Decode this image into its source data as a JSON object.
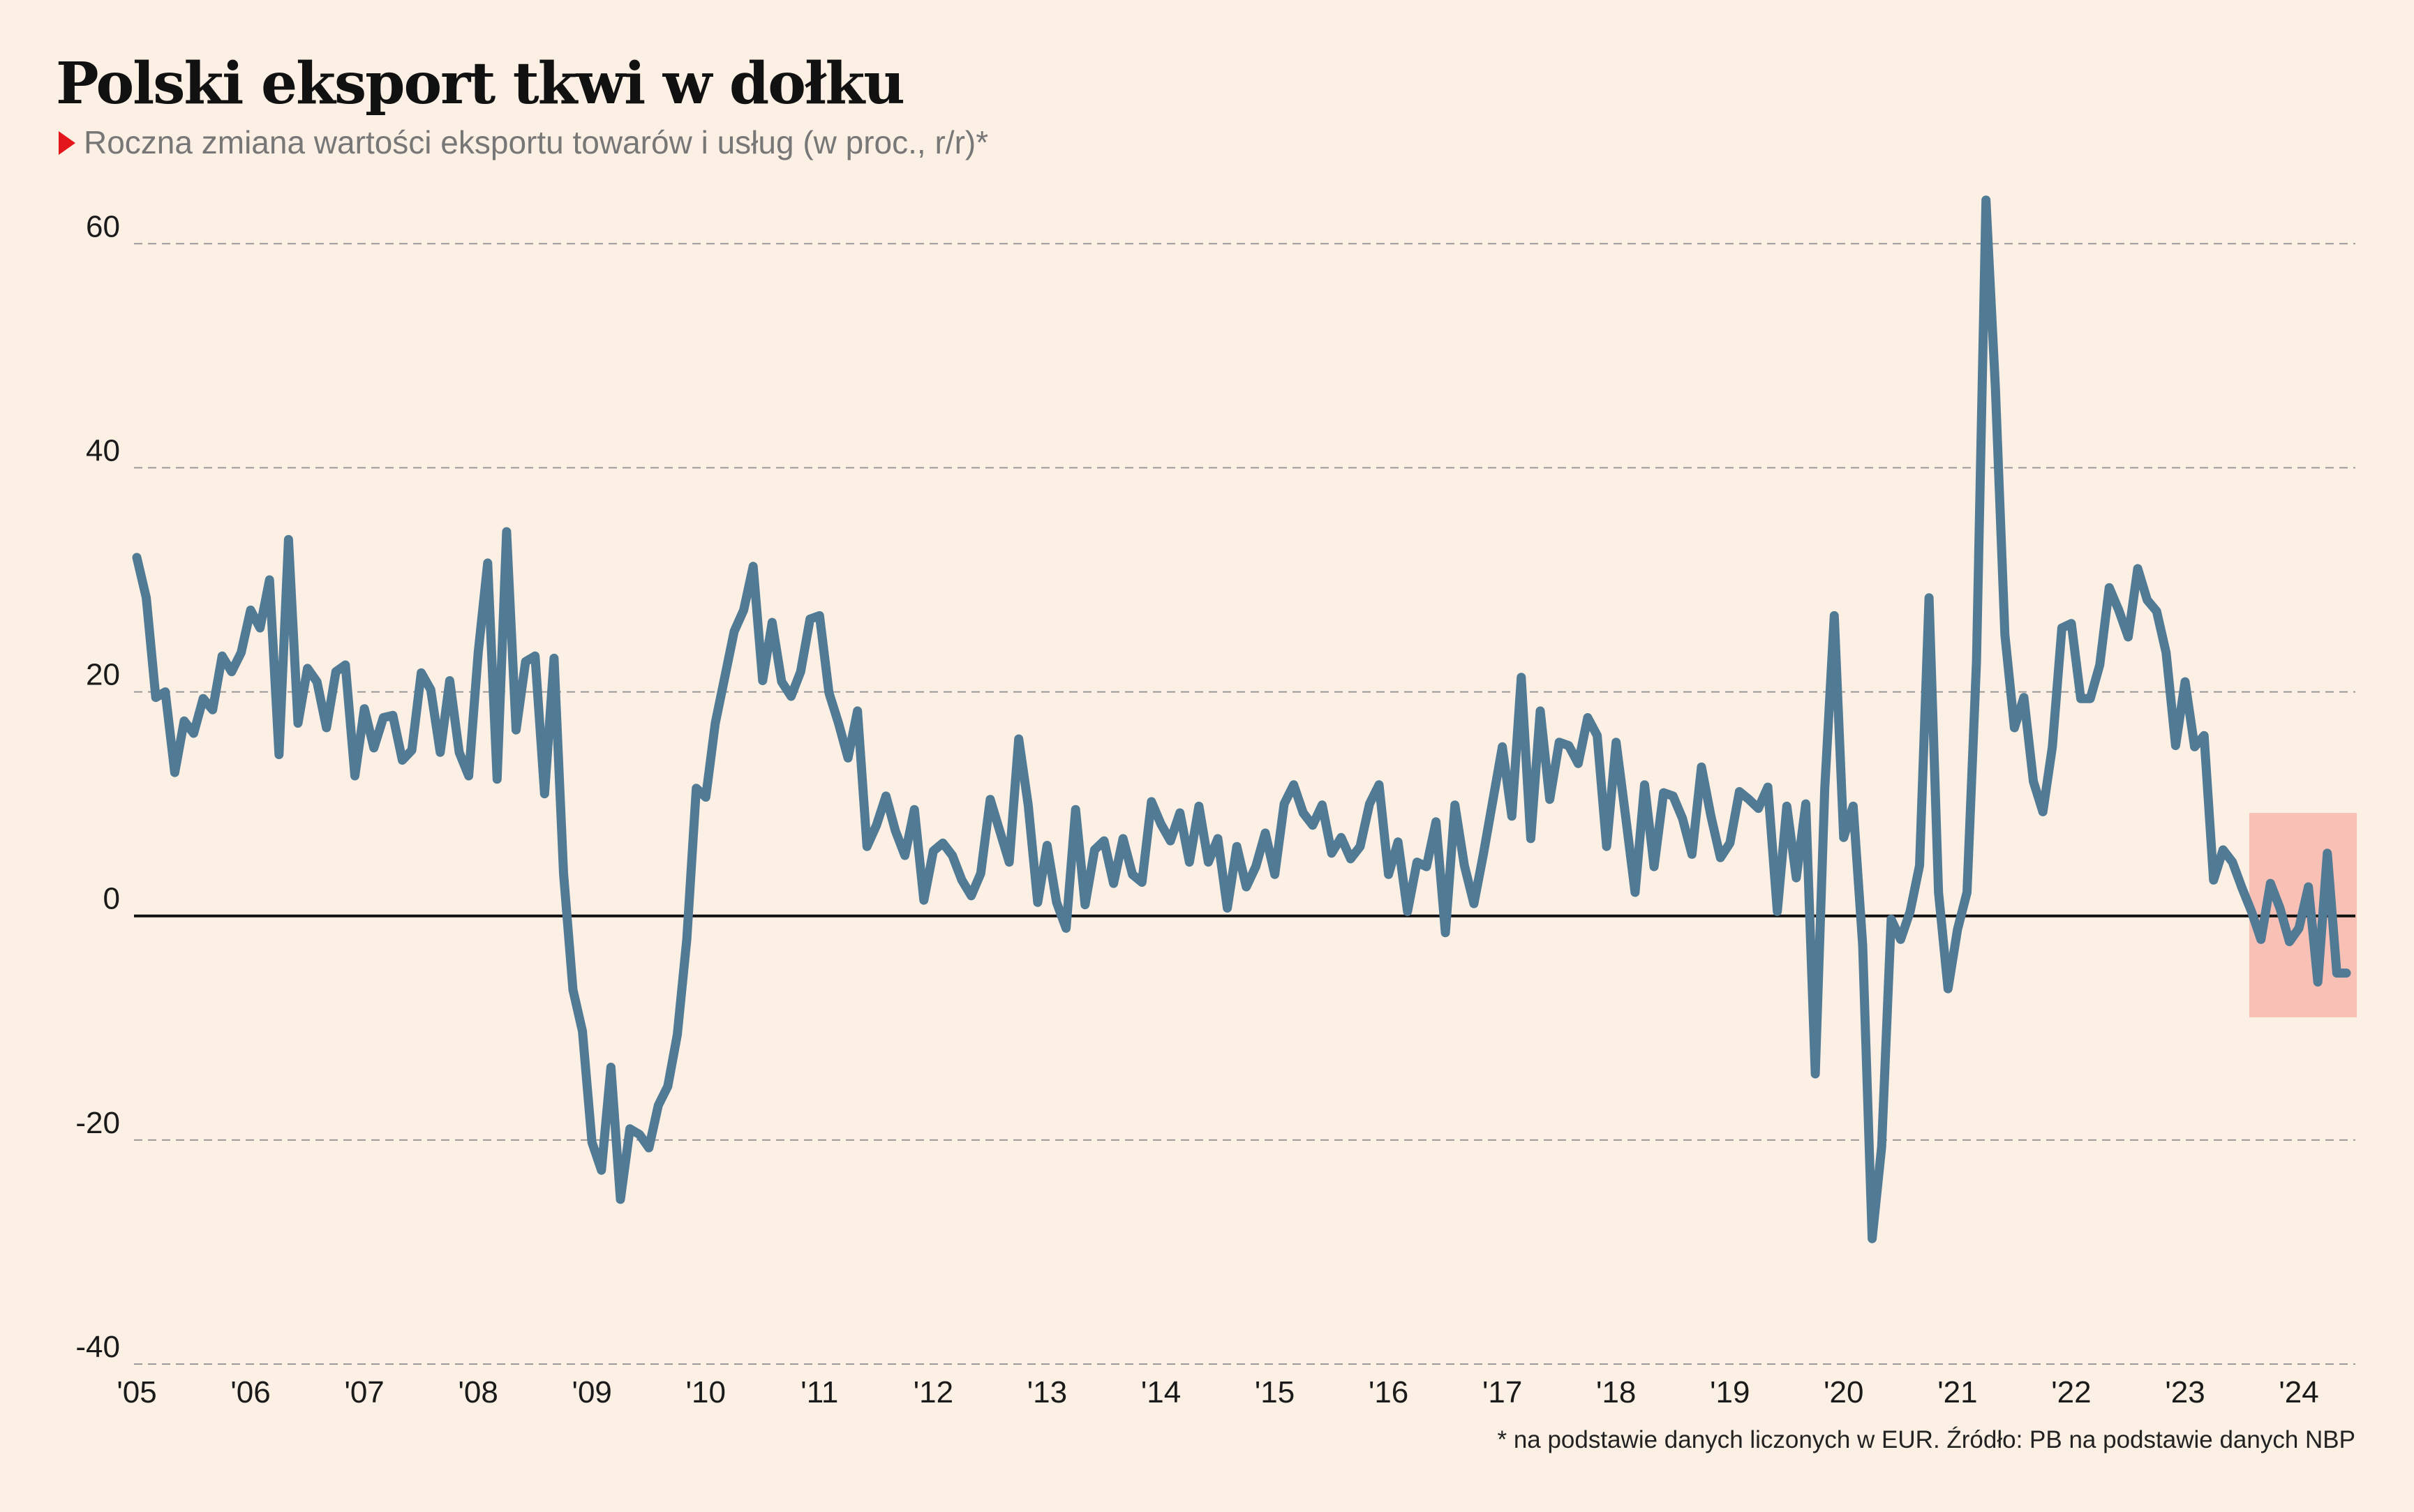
{
  "chart_data": {
    "type": "line",
    "title": "Polski eksport tkwi w dołku",
    "subtitle": "Roczna zmiana wartości eksportu towarów i usług (w proc., r/r)*",
    "footnote": "* na podstawie danych liczonych w EUR. Źródło: PB na podstawie danych NBP",
    "categories": [
      "'05",
      null,
      null,
      null,
      null,
      null,
      null,
      null,
      null,
      null,
      null,
      null,
      "'06",
      null,
      null,
      null,
      null,
      null,
      null,
      null,
      null,
      null,
      null,
      null,
      "'07",
      null,
      null,
      null,
      null,
      null,
      null,
      null,
      null,
      null,
      null,
      null,
      "'08",
      null,
      null,
      null,
      null,
      null,
      null,
      null,
      null,
      null,
      null,
      null,
      "'09",
      null,
      null,
      null,
      null,
      null,
      null,
      null,
      null,
      null,
      null,
      null,
      "'10",
      null,
      null,
      null,
      null,
      null,
      null,
      null,
      null,
      null,
      null,
      null,
      "'11",
      null,
      null,
      null,
      null,
      null,
      null,
      null,
      null,
      null,
      null,
      null,
      "'12",
      null,
      null,
      null,
      null,
      null,
      null,
      null,
      null,
      null,
      null,
      null,
      "'13",
      null,
      null,
      null,
      null,
      null,
      null,
      null,
      null,
      null,
      null,
      null,
      "'14",
      null,
      null,
      null,
      null,
      null,
      null,
      null,
      null,
      null,
      null,
      null,
      "'15",
      null,
      null,
      null,
      null,
      null,
      null,
      null,
      null,
      null,
      null,
      null,
      "'16",
      null,
      null,
      null,
      null,
      null,
      null,
      null,
      null,
      null,
      null,
      null,
      "'17",
      null,
      null,
      null,
      null,
      null,
      null,
      null,
      null,
      null,
      null,
      null,
      "'18",
      null,
      null,
      null,
      null,
      null,
      null,
      null,
      null,
      null,
      null,
      null,
      "'19",
      null,
      null,
      null,
      null,
      null,
      null,
      null,
      null,
      null,
      null,
      null,
      "'20",
      null,
      null,
      null,
      null,
      null,
      null,
      null,
      null,
      null,
      null,
      null,
      "'21",
      null,
      null,
      null,
      null,
      null,
      null,
      null,
      null,
      null,
      null,
      null,
      "'22",
      null,
      null,
      null,
      null,
      null,
      null,
      null,
      null,
      null,
      null,
      null,
      "'23",
      null,
      null,
      null,
      null,
      null,
      null,
      null,
      null,
      null,
      null,
      null,
      "'24",
      null,
      null,
      null,
      null,
      null
    ],
    "values": [
      32,
      28.4,
      19.5,
      20,
      12.8,
      17.4,
      16.3,
      19.4,
      18.4,
      23.2,
      21.8,
      23.5,
      27.3,
      25.7,
      30,
      14.4,
      33.6,
      17.2,
      22.1,
      20.9,
      16.8,
      21.8,
      22.4,
      12.5,
      18.5,
      15,
      17.7,
      17.9,
      13.9,
      14.8,
      21.7,
      20.2,
      14.6,
      21,
      14.6,
      12.5,
      23.5,
      31.5,
      12.2,
      34.3,
      16.6,
      22.7,
      23.2,
      10.9,
      23,
      3.8,
      -6.6,
      -10.3,
      -20.2,
      -22.7,
      -13.5,
      -25.3,
      -19,
      -19.5,
      -20.7,
      -16.9,
      -15.2,
      -10.6,
      -2.1,
      11.4,
      10.6,
      17.2,
      21.3,
      25.4,
      27.3,
      31.2,
      21,
      26.2,
      20.9,
      19.6,
      21.8,
      26.5,
      26.8,
      19.9,
      17.2,
      14.1,
      18.3,
      6.2,
      8.1,
      10.7,
      7.6,
      5.4,
      9.5,
      1.4,
      5.8,
      6.5,
      5.4,
      3.2,
      1.8,
      3.8,
      10.4,
      7.6,
      4.8,
      15.8,
      9.9,
      1.2,
      6.3,
      1.2,
      -1.1,
      9.5,
      1,
      5.9,
      6.7,
      2.9,
      6.9,
      3.7,
      3,
      10.2,
      8.2,
      6.7,
      9.2,
      4.8,
      9.8,
      4.8,
      6.9,
      0.7,
      6.2,
      2.6,
      4.4,
      7.4,
      3.7,
      10,
      11.7,
      9.2,
      8.1,
      9.9,
      5.6,
      7,
      5.1,
      6.2,
      10,
      11.7,
      3.7,
      6.6,
      0.4,
      4.8,
      4.4,
      8.4,
      -1.5,
      9.9,
      4.5,
      1.1,
      5.5,
      10.3,
      15.1,
      8.9,
      21.3,
      6.9,
      18.3,
      10.4,
      15.5,
      15.2,
      13.6,
      17.7,
      16.1,
      6.2,
      15.5,
      8.9,
      2.1,
      11.7,
      4.4,
      11,
      10.7,
      8.7,
      5.5,
      13.3,
      8.9,
      5.2,
      6.5,
      11.1,
      10.4,
      9.6,
      11.5,
      0.4,
      9.8,
      3.4,
      10,
      -14.1,
      11.4,
      26.8,
      7,
      9.8,
      -2.6,
      -28.8,
      -20.6,
      -0.3,
      -2.1,
      0.4,
      4.5,
      28.4,
      2.1,
      -6.5,
      -1.2,
      2.1,
      22.7,
      63.9,
      47.1,
      25.1,
      16.8,
      19.5,
      12,
      9.3,
      15.1,
      25.7,
      26.1,
      19.4,
      19.4,
      22.4,
      29.3,
      27.3,
      24.9,
      31,
      28.2,
      27.2,
      23.5,
      15.2,
      20.9,
      15.1,
      16.1,
      3.2,
      5.9,
      4.8,
      2.5,
      0.4,
      -2.1,
      2.9,
      0.7,
      -2.3,
      -1.1,
      2.6,
      -5.9,
      5.6,
      -5.1,
      -5.1
    ],
    "color": "#517a95",
    "ylim": [
      -40,
      65
    ],
    "yticks": [
      -40,
      -20,
      0,
      20,
      40,
      60
    ],
    "grid": true
  }
}
